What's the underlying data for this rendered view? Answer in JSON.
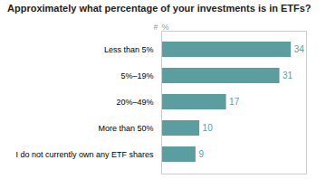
{
  "chart_data": {
    "type": "bar",
    "title": "Approximately what percentage of your investments is in ETFs?",
    "xlabel": "%",
    "annotations": [
      "#"
    ],
    "categories": [
      "Less than 5%",
      "5%–19%",
      "20%–49%",
      "More than 50%",
      "I do not currently own any ETF shares"
    ],
    "values": [
      34,
      31,
      17,
      10,
      9
    ],
    "color": "#5b9ea0",
    "orientation": "horizontal",
    "xlim": [
      0,
      38
    ],
    "xticks": [],
    "tick_labels": "y",
    "data_labels": true
  }
}
